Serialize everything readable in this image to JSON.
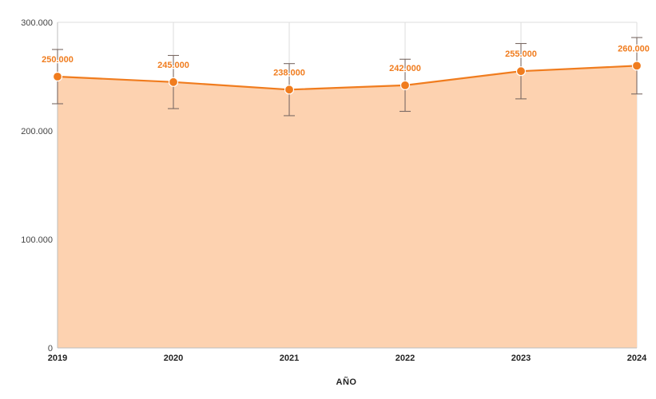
{
  "chart_data": {
    "type": "area",
    "title": "",
    "xlabel": "AÑO",
    "ylabel": "",
    "categories": [
      "2019",
      "2020",
      "2021",
      "2022",
      "2023",
      "2024"
    ],
    "series": [
      {
        "values": [
          250000,
          245000,
          238000,
          242000,
          255000,
          260000
        ],
        "data_labels": [
          "250.000",
          "245.000",
          "238.000",
          "242.000",
          "255.000",
          "260.000"
        ],
        "error_low": [
          225000,
          220500,
          214000,
          218000,
          229500,
          234000
        ],
        "error_high": [
          275000,
          269500,
          262000,
          266000,
          280500,
          286000
        ]
      }
    ],
    "ylim": [
      0,
      300000
    ],
    "y_ticks": [
      0,
      100000,
      200000,
      300000
    ],
    "y_tick_labels": [
      "0",
      "100.000",
      "200.000",
      "300.000"
    ],
    "grid": true,
    "error_bars": true,
    "colors": {
      "line": "#f07c1e",
      "fill": "#fdd2b0",
      "marker": "#f07c1e",
      "data_label": "#f07c1e",
      "error_bar": "#7a6a64"
    }
  }
}
